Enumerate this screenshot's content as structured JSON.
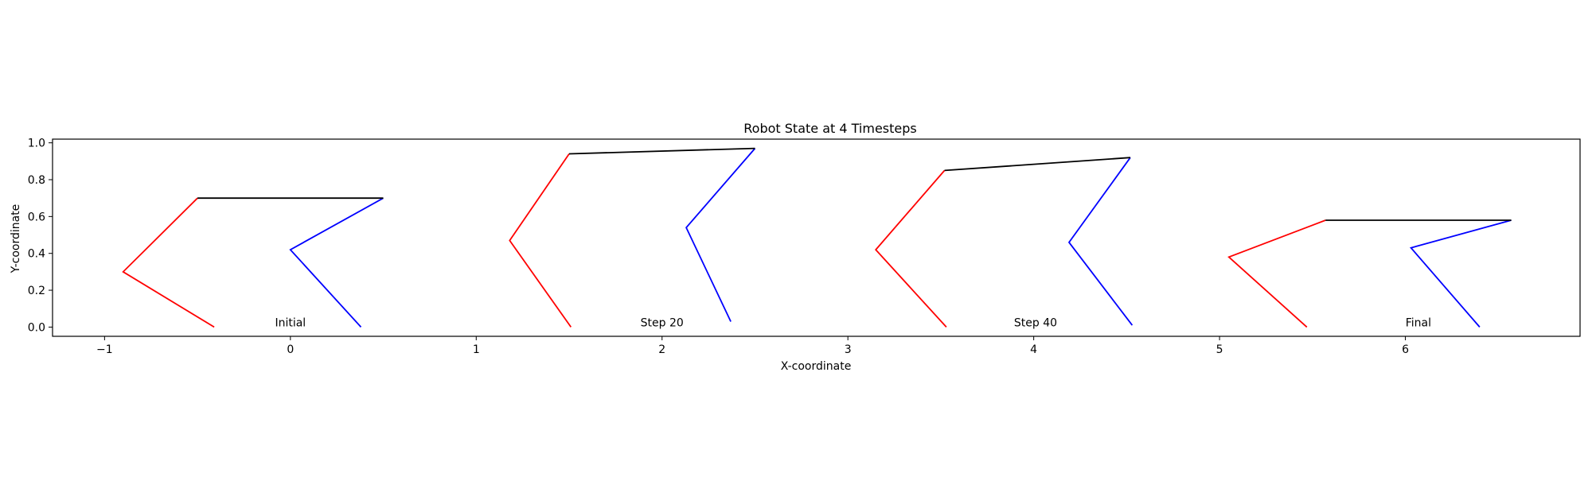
{
  "chart_data": {
    "type": "line",
    "title": "Robot State at 4 Timesteps",
    "xlabel": "X-coordinate",
    "ylabel": "Y-coordinate",
    "xlim": [
      -1.28,
      6.94
    ],
    "ylim": [
      -0.05,
      1.02
    ],
    "xticks": [
      -1,
      0,
      1,
      2,
      3,
      4,
      5,
      6
    ],
    "xtick_labels": [
      "−1",
      "0",
      "1",
      "2",
      "3",
      "4",
      "5",
      "6"
    ],
    "yticks": [
      0.0,
      0.2,
      0.4,
      0.6,
      0.8,
      1.0
    ],
    "ytick_labels": [
      "0.0",
      "0.2",
      "0.4",
      "0.6",
      "0.8",
      "1.0"
    ],
    "grid": false,
    "colors": {
      "left_leg": "#ff0000",
      "right_leg": "#0000ff",
      "body": "#000000"
    },
    "timesteps": [
      {
        "label": "Initial",
        "label_pos": [
          0.0,
          0.0
        ],
        "left_leg": [
          [
            -0.5,
            0.7
          ],
          [
            -0.9,
            0.3
          ],
          [
            -0.41,
            0.0
          ]
        ],
        "right_leg": [
          [
            0.5,
            0.7
          ],
          [
            0.0,
            0.42
          ],
          [
            0.38,
            0.0
          ]
        ],
        "body": [
          [
            -0.5,
            0.7
          ],
          [
            0.5,
            0.7
          ]
        ]
      },
      {
        "label": "Step 20",
        "label_pos": [
          2.0,
          0.0
        ],
        "left_leg": [
          [
            1.5,
            0.94
          ],
          [
            1.18,
            0.47
          ],
          [
            1.51,
            0.0
          ]
        ],
        "right_leg": [
          [
            2.5,
            0.97
          ],
          [
            2.13,
            0.54
          ],
          [
            2.37,
            0.03
          ]
        ],
        "body": [
          [
            1.5,
            0.94
          ],
          [
            2.5,
            0.97
          ]
        ]
      },
      {
        "label": "Step 40",
        "label_pos": [
          4.01,
          0.0
        ],
        "left_leg": [
          [
            3.52,
            0.85
          ],
          [
            3.15,
            0.42
          ],
          [
            3.53,
            0.0
          ]
        ],
        "right_leg": [
          [
            4.52,
            0.92
          ],
          [
            4.19,
            0.46
          ],
          [
            4.53,
            0.01
          ]
        ],
        "body": [
          [
            3.52,
            0.85
          ],
          [
            4.52,
            0.92
          ]
        ]
      },
      {
        "label": "Final",
        "label_pos": [
          6.07,
          0.0
        ],
        "left_leg": [
          [
            5.57,
            0.58
          ],
          [
            5.05,
            0.38
          ],
          [
            5.47,
            0.0
          ]
        ],
        "right_leg": [
          [
            6.57,
            0.58
          ],
          [
            6.03,
            0.43
          ],
          [
            6.4,
            0.0
          ]
        ],
        "body": [
          [
            5.57,
            0.58
          ],
          [
            6.57,
            0.58
          ]
        ]
      }
    ]
  }
}
